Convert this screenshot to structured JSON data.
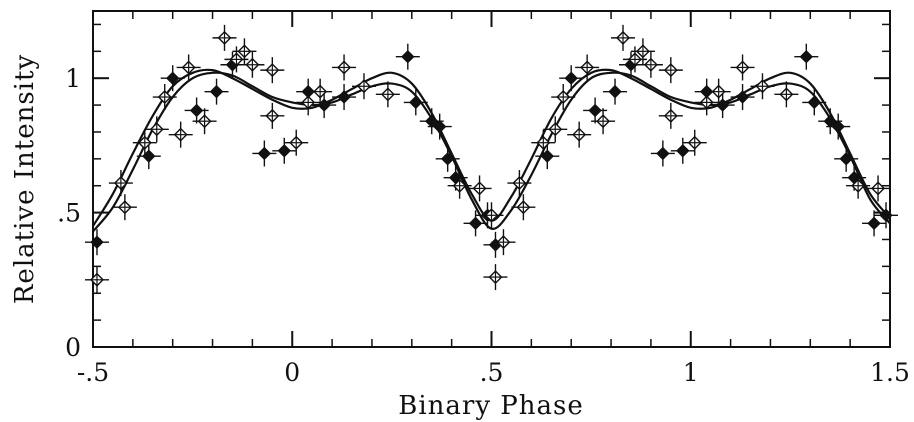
{
  "chart_data": {
    "type": "scatter",
    "title": "",
    "xlabel": "Binary Phase",
    "ylabel": "Relative Intensity",
    "xlim": [
      -0.5,
      1.5
    ],
    "ylim": [
      0,
      1.25
    ],
    "x_tick_labels": [
      {
        "value": -0.5,
        "label": "-.5"
      },
      {
        "value": 0,
        "label": "0"
      },
      {
        "value": 0.5,
        "label": ".5"
      },
      {
        "value": 1,
        "label": "1"
      },
      {
        "value": 1.5,
        "label": "1.5"
      }
    ],
    "y_tick_labels": [
      {
        "value": 0,
        "label": "0"
      },
      {
        "value": 0.5,
        "label": ".5"
      },
      {
        "value": 1,
        "label": "1"
      }
    ],
    "grid": false,
    "series": [
      {
        "marker": "filled-diamond",
        "color": "#111111",
        "points": [
          [
            -0.49,
            0.39
          ],
          [
            -0.36,
            0.71
          ],
          [
            -0.3,
            1.0
          ],
          [
            -0.24,
            0.88
          ],
          [
            -0.19,
            0.95
          ],
          [
            -0.15,
            1.05
          ],
          [
            -0.07,
            0.72
          ],
          [
            -0.02,
            0.73
          ],
          [
            0.04,
            0.95
          ],
          [
            0.08,
            0.9
          ],
          [
            0.13,
            0.93
          ],
          [
            0.29,
            1.08
          ],
          [
            0.31,
            0.91
          ],
          [
            0.35,
            0.84
          ],
          [
            0.37,
            0.82
          ],
          [
            0.39,
            0.7
          ],
          [
            0.41,
            0.63
          ],
          [
            0.46,
            0.46
          ],
          [
            0.49,
            0.49
          ],
          [
            0.51,
            0.38
          ],
          [
            0.64,
            0.71
          ],
          [
            0.7,
            1.0
          ],
          [
            0.76,
            0.88
          ],
          [
            0.81,
            0.95
          ],
          [
            0.85,
            1.05
          ],
          [
            0.93,
            0.72
          ],
          [
            0.98,
            0.73
          ],
          [
            1.04,
            0.95
          ],
          [
            1.08,
            0.9
          ],
          [
            1.13,
            0.93
          ],
          [
            1.29,
            1.08
          ],
          [
            1.31,
            0.91
          ],
          [
            1.35,
            0.84
          ],
          [
            1.37,
            0.82
          ],
          [
            1.39,
            0.7
          ],
          [
            1.41,
            0.63
          ],
          [
            1.46,
            0.46
          ],
          [
            1.49,
            0.49
          ]
        ]
      },
      {
        "marker": "open-diamond",
        "color": "#111111",
        "points": [
          [
            -0.49,
            0.25
          ],
          [
            -0.43,
            0.61
          ],
          [
            -0.42,
            0.52
          ],
          [
            -0.37,
            0.76
          ],
          [
            -0.34,
            0.81
          ],
          [
            -0.32,
            0.93
          ],
          [
            -0.28,
            0.79
          ],
          [
            -0.26,
            1.04
          ],
          [
            -0.22,
            0.84
          ],
          [
            -0.17,
            1.15
          ],
          [
            -0.14,
            1.07
          ],
          [
            -0.12,
            1.1
          ],
          [
            -0.1,
            1.05
          ],
          [
            -0.05,
            1.03
          ],
          [
            -0.05,
            0.86
          ],
          [
            0.01,
            0.76
          ],
          [
            0.04,
            0.91
          ],
          [
            0.07,
            0.95
          ],
          [
            0.13,
            1.04
          ],
          [
            0.18,
            0.97
          ],
          [
            0.24,
            0.94
          ],
          [
            0.42,
            0.6
          ],
          [
            0.47,
            0.59
          ],
          [
            0.5,
            0.49
          ],
          [
            0.51,
            0.26
          ],
          [
            0.53,
            0.39
          ],
          [
            0.57,
            0.61
          ],
          [
            0.58,
            0.52
          ],
          [
            0.63,
            0.76
          ],
          [
            0.66,
            0.81
          ],
          [
            0.68,
            0.93
          ],
          [
            0.72,
            0.79
          ],
          [
            0.74,
            1.04
          ],
          [
            0.78,
            0.84
          ],
          [
            0.83,
            1.15
          ],
          [
            0.86,
            1.07
          ],
          [
            0.88,
            1.1
          ],
          [
            0.9,
            1.05
          ],
          [
            0.95,
            1.03
          ],
          [
            0.95,
            0.86
          ],
          [
            1.01,
            0.76
          ],
          [
            1.04,
            0.91
          ],
          [
            1.07,
            0.95
          ],
          [
            1.13,
            1.04
          ],
          [
            1.18,
            0.97
          ],
          [
            1.24,
            0.94
          ],
          [
            1.42,
            0.6
          ],
          [
            1.47,
            0.59
          ]
        ]
      }
    ],
    "model_curves": [
      {
        "name": "",
        "x": [
          -0.5,
          -0.45,
          -0.4,
          -0.35,
          -0.3,
          -0.25,
          -0.2,
          -0.15,
          -0.1,
          -0.05,
          0,
          0.05,
          0.1,
          0.15,
          0.2,
          0.25,
          0.3,
          0.35,
          0.4,
          0.45,
          0.5,
          0.55,
          0.6,
          0.65,
          0.7,
          0.75,
          0.8,
          0.85,
          0.9,
          0.95,
          1.0,
          1.05,
          1.1,
          1.15,
          1.2,
          1.25,
          1.3,
          1.35,
          1.4,
          1.45,
          1.5
        ],
        "y": [
          0.43,
          0.52,
          0.66,
          0.81,
          0.93,
          1.0,
          1.02,
          1.01,
          0.97,
          0.93,
          0.91,
          0.9,
          0.91,
          0.94,
          0.97,
          0.98,
          0.95,
          0.85,
          0.71,
          0.55,
          0.44,
          0.51,
          0.64,
          0.79,
          0.92,
          1.0,
          1.02,
          1.01,
          0.97,
          0.93,
          0.91,
          0.9,
          0.91,
          0.94,
          0.97,
          0.98,
          0.95,
          0.85,
          0.71,
          0.55,
          0.46
        ]
      },
      {
        "name": "",
        "x": [
          -0.5,
          -0.45,
          -0.4,
          -0.35,
          -0.3,
          -0.25,
          -0.2,
          -0.15,
          -0.1,
          -0.05,
          0,
          0.05,
          0.1,
          0.15,
          0.2,
          0.25,
          0.3,
          0.35,
          0.4,
          0.45,
          0.5,
          0.55,
          0.6,
          0.65,
          0.7,
          0.75,
          0.8,
          0.85,
          0.9,
          0.95,
          1.0,
          1.05,
          1.1,
          1.15,
          1.2,
          1.25,
          1.3,
          1.35,
          1.4,
          1.45,
          1.5
        ],
        "y": [
          0.45,
          0.57,
          0.72,
          0.86,
          0.97,
          1.02,
          1.03,
          1.0,
          0.96,
          0.92,
          0.89,
          0.89,
          0.92,
          0.96,
          1.0,
          1.02,
          0.98,
          0.87,
          0.72,
          0.57,
          0.47,
          0.56,
          0.7,
          0.85,
          0.96,
          1.02,
          1.03,
          1.0,
          0.96,
          0.92,
          0.89,
          0.89,
          0.92,
          0.96,
          1.0,
          1.02,
          0.98,
          0.87,
          0.72,
          0.57,
          0.48
        ]
      }
    ]
  }
}
